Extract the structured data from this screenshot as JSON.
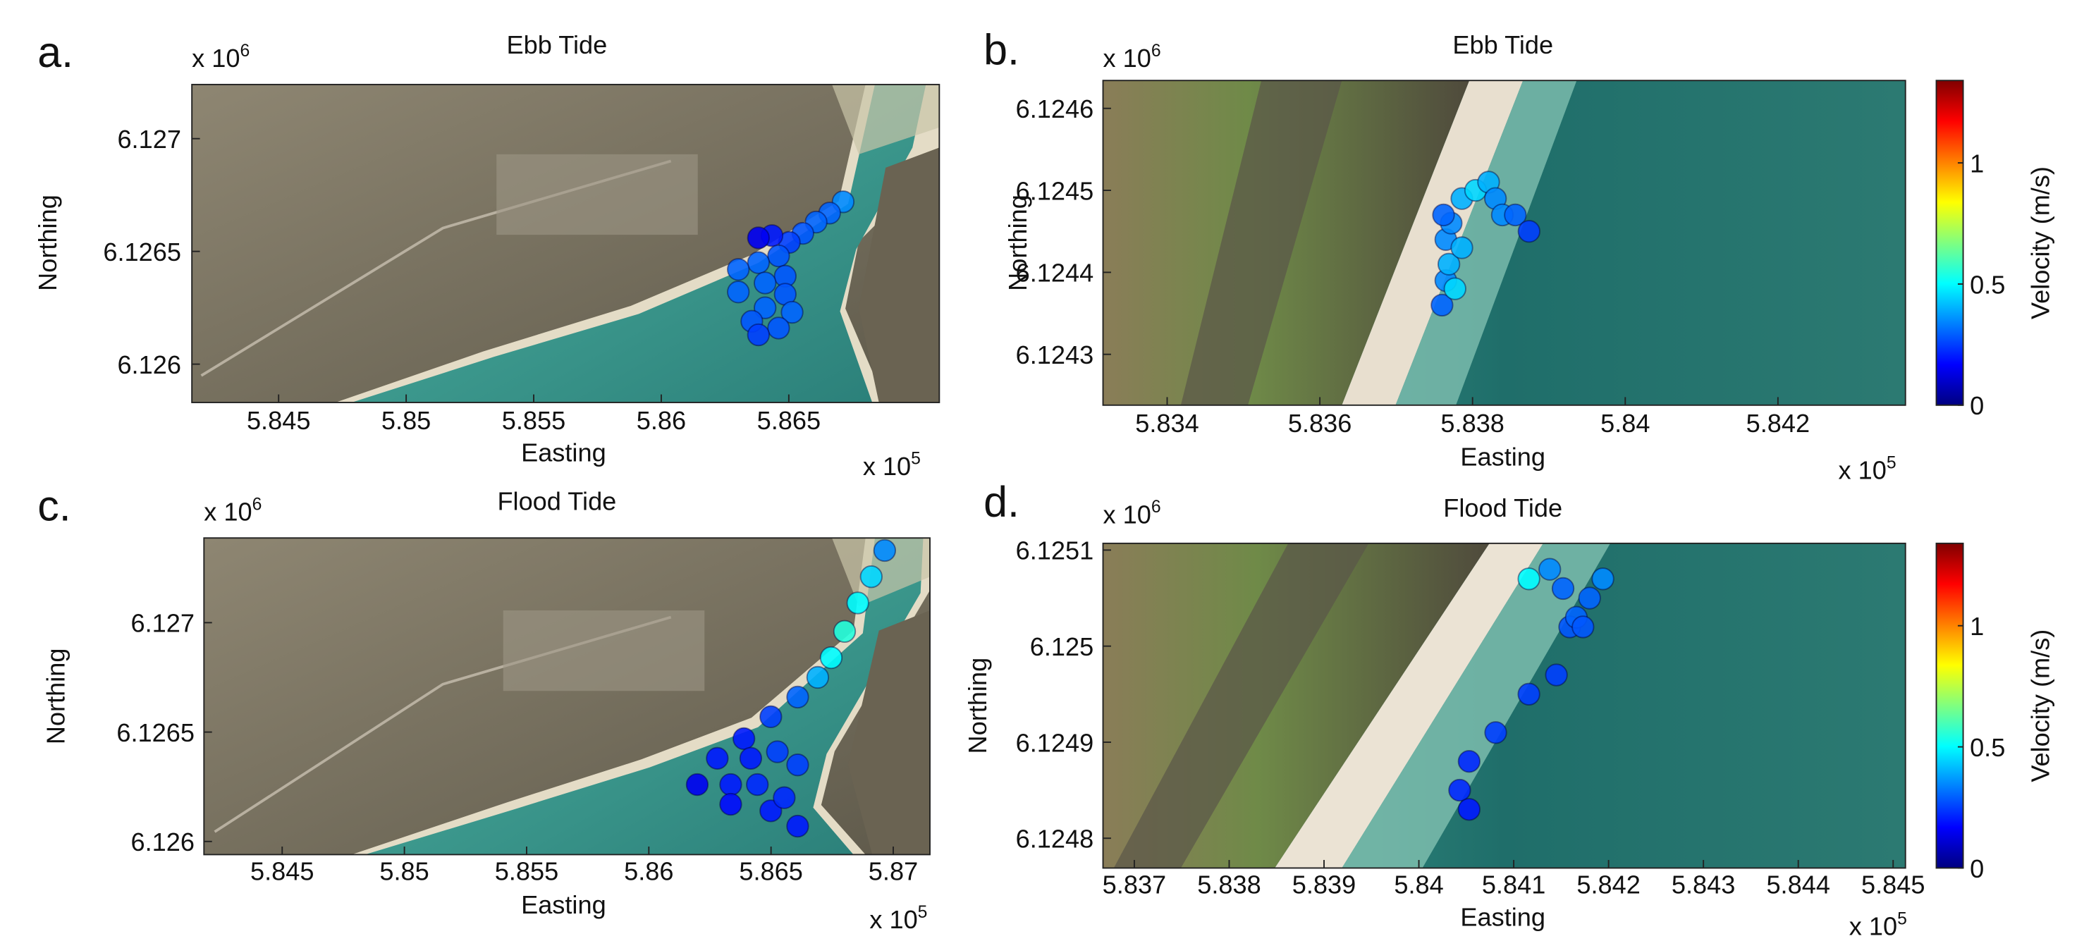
{
  "chart_data": [
    {
      "type": "scatter",
      "panel_label": "a.",
      "title": "Ebb Tide",
      "x_label": "Easting",
      "y_label": "Northing",
      "x_scale": {
        "base": "x 10",
        "exponent": "5"
      },
      "y_scale": {
        "base": "x 10",
        "exponent": "6"
      },
      "xlim": [
        5.8416,
        5.8709
      ],
      "ylim": [
        6.12583,
        6.12724
      ],
      "xticks": [
        5.845,
        5.85,
        5.855,
        5.86,
        5.865
      ],
      "yticks": [
        6.126,
        6.1265,
        6.127
      ],
      "clim": [
        0,
        1.34
      ],
      "colormap": "jet",
      "x": [
        5.86713,
        5.8666,
        5.86607,
        5.86555,
        5.86502,
        5.86434,
        5.86381,
        5.8646,
        5.86381,
        5.86302,
        5.86486,
        5.86407,
        5.86302,
        5.86486,
        5.86407,
        5.86355,
        5.86513,
        5.8646,
        5.86381
      ],
      "y": [
        6.12672,
        6.12667,
        6.12663,
        6.12658,
        6.12654,
        6.12657,
        6.12656,
        6.12648,
        6.12645,
        6.12642,
        6.12639,
        6.12636,
        6.12632,
        6.12631,
        6.12625,
        6.12619,
        6.12623,
        6.12616,
        6.12613
      ],
      "velocity": [
        0.35,
        0.3,
        0.3,
        0.28,
        0.25,
        0.2,
        0.15,
        0.28,
        0.3,
        0.3,
        0.28,
        0.3,
        0.3,
        0.28,
        0.3,
        0.28,
        0.3,
        0.28,
        0.25
      ]
    },
    {
      "type": "scatter",
      "panel_label": "b.",
      "title": "Ebb Tide",
      "x_label": "Easting",
      "y_label": "Northing",
      "x_scale": {
        "base": "x 10",
        "exponent": "5"
      },
      "y_scale": {
        "base": "x 10",
        "exponent": "6"
      },
      "xlim": [
        5.83316,
        5.84367
      ],
      "ylim": [
        6.124238,
        6.124634
      ],
      "xticks": [
        5.834,
        5.836,
        5.838,
        5.84,
        5.842
      ],
      "yticks": [
        6.1243,
        6.1244,
        6.1245,
        6.1246
      ],
      "clim": [
        0,
        1.34
      ],
      "colormap": "jet",
      "colorbar": {
        "label": "Velocity (m/s)",
        "ticks": [
          0,
          0.5,
          1
        ]
      },
      "x": [
        5.8376,
        5.83765,
        5.83769,
        5.83765,
        5.83772,
        5.83762,
        5.83786,
        5.83804,
        5.83821,
        5.8383,
        5.83839,
        5.83856,
        5.83874,
        5.83777,
        5.83786
      ],
      "y": [
        6.12436,
        6.12439,
        6.12441,
        6.12444,
        6.12446,
        6.12447,
        6.12449,
        6.1245,
        6.12451,
        6.12449,
        6.12447,
        6.12447,
        6.12445,
        6.12438,
        6.12443
      ],
      "velocity": [
        0.3,
        0.35,
        0.4,
        0.35,
        0.35,
        0.3,
        0.4,
        0.45,
        0.4,
        0.35,
        0.35,
        0.3,
        0.25,
        0.45,
        0.4
      ]
    },
    {
      "type": "scatter",
      "panel_label": "c.",
      "title": "Flood Tide",
      "x_label": "Easting",
      "y_label": "Northing",
      "x_scale": {
        "base": "x 10",
        "exponent": "5"
      },
      "y_scale": {
        "base": "x 10",
        "exponent": "6"
      },
      "xlim": [
        5.8418,
        5.8715
      ],
      "ylim": [
        6.12594,
        6.127387
      ],
      "xticks": [
        5.845,
        5.85,
        5.855,
        5.86,
        5.865,
        5.87
      ],
      "yticks": [
        6.126,
        6.1265,
        6.127
      ],
      "clim": [
        0,
        1.34
      ],
      "colormap": "jet",
      "x": [
        5.86965,
        5.8691,
        5.86855,
        5.86801,
        5.86746,
        5.86691,
        5.86609,
        5.86499,
        5.86389,
        5.8628,
        5.86198,
        5.86417,
        5.86335,
        5.86335,
        5.86526,
        5.86444,
        5.86499,
        5.86609,
        5.86554,
        5.86609
      ],
      "y": [
        6.12733,
        6.12721,
        6.12709,
        6.12696,
        6.12684,
        6.12675,
        6.12666,
        6.12657,
        6.12647,
        6.12638,
        6.12626,
        6.12638,
        6.12626,
        6.12617,
        6.12641,
        6.12626,
        6.12614,
        6.12635,
        6.1262,
        6.12607
      ],
      "velocity": [
        0.35,
        0.45,
        0.5,
        0.55,
        0.5,
        0.4,
        0.3,
        0.25,
        0.2,
        0.2,
        0.15,
        0.2,
        0.2,
        0.18,
        0.25,
        0.22,
        0.2,
        0.25,
        0.22,
        0.2
      ]
    },
    {
      "type": "scatter",
      "panel_label": "d.",
      "title": "Flood Tide",
      "x_label": "Easting",
      "y_label": "Northing",
      "x_scale": {
        "base": "x 10",
        "exponent": "5"
      },
      "y_scale": {
        "base": "x 10",
        "exponent": "6"
      },
      "xlim": [
        5.83667,
        5.84513
      ],
      "ylim": [
        6.124769,
        6.125107
      ],
      "xticks": [
        5.837,
        5.838,
        5.839,
        5.84,
        5.841,
        5.842,
        5.843,
        5.844,
        5.845
      ],
      "yticks": [
        6.1248,
        6.1249,
        6.125,
        6.1251
      ],
      "clim": [
        0,
        1.34
      ],
      "colormap": "jet",
      "colorbar": {
        "label": "Velocity (m/s)",
        "ticks": [
          0,
          0.5,
          1
        ]
      },
      "x": [
        5.84116,
        5.84138,
        5.84152,
        5.84159,
        5.84145,
        5.84116,
        5.84081,
        5.84053,
        5.84043,
        5.84053,
        5.84166,
        5.8418,
        5.84194,
        5.84173
      ],
      "y": [
        6.12507,
        6.12508,
        6.12506,
        6.12502,
        6.12497,
        6.12495,
        6.12491,
        6.12488,
        6.12485,
        6.12483,
        6.12503,
        6.12505,
        6.12507,
        6.12502
      ],
      "velocity": [
        0.5,
        0.35,
        0.3,
        0.28,
        0.25,
        0.25,
        0.25,
        0.22,
        0.22,
        0.2,
        0.3,
        0.3,
        0.35,
        0.28
      ]
    }
  ]
}
